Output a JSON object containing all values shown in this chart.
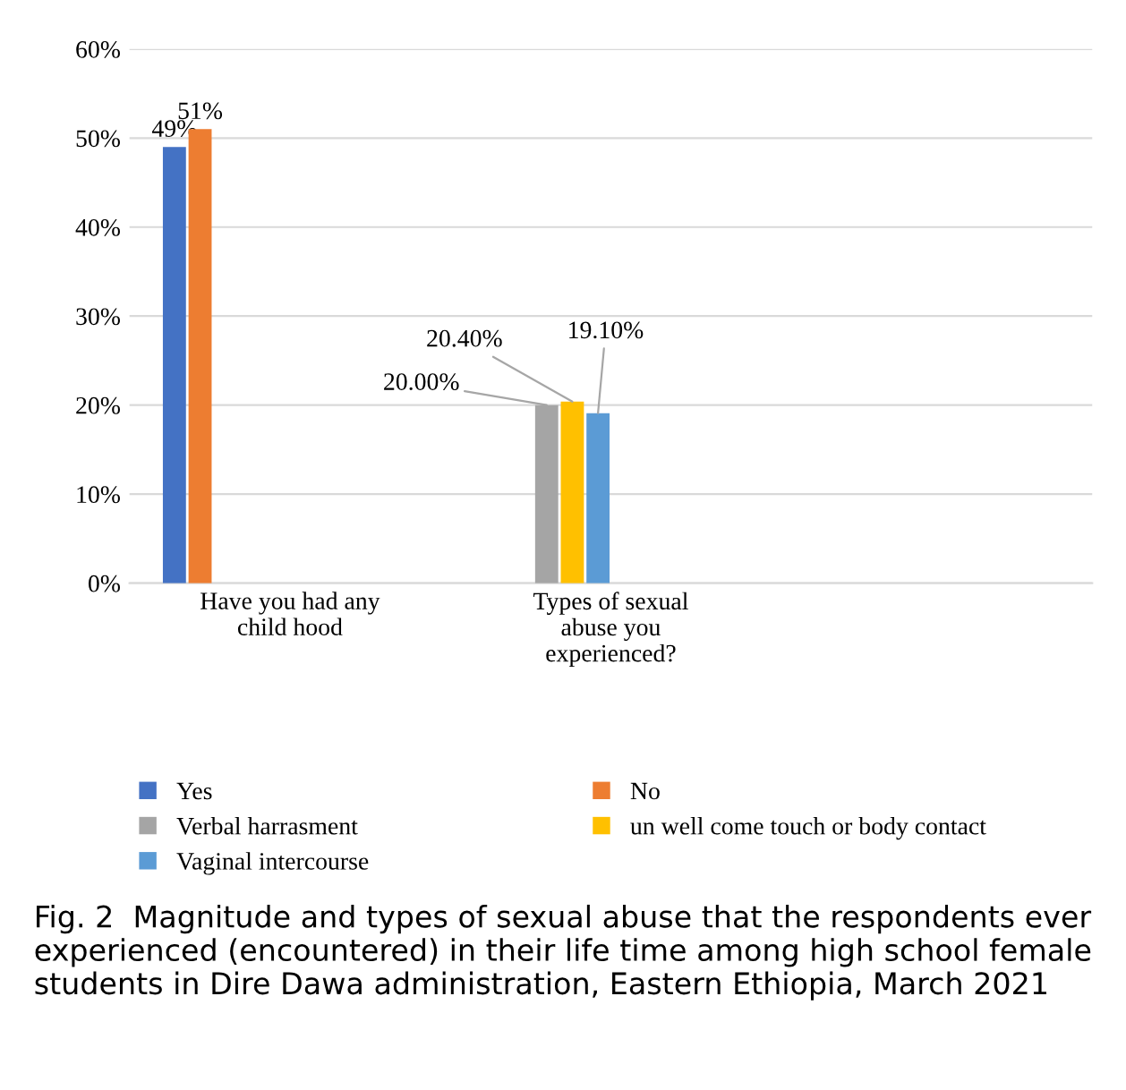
{
  "chart_data": {
    "type": "bar",
    "categories": [
      "Have you had any\nchild hood",
      "Types of sexual\nabuse you\nexperienced?",
      null
    ],
    "series": [
      {
        "name": "Yes",
        "color": "#4472c4",
        "values": [
          49,
          null,
          null
        ],
        "value_labels": [
          "49%",
          null,
          null
        ]
      },
      {
        "name": "No",
        "color": "#ed7d31",
        "values": [
          51,
          null,
          null
        ],
        "value_labels": [
          "51%",
          null,
          null
        ]
      },
      {
        "name": "Verbal harrasment",
        "color": "#a5a5a5",
        "values": [
          null,
          20.0,
          null
        ],
        "value_labels": [
          null,
          "20.00%",
          null
        ]
      },
      {
        "name": "un well come touch or body contact",
        "color": "#ffc000",
        "values": [
          null,
          20.4,
          null
        ],
        "value_labels": [
          null,
          "20.40%",
          null
        ]
      },
      {
        "name": "Vaginal intercourse",
        "color": "#5b9bd5",
        "values": [
          null,
          19.1,
          null
        ],
        "value_labels": [
          null,
          "19.10%",
          null
        ]
      }
    ],
    "ylim": [
      0,
      60
    ],
    "yticks": [
      {
        "value": 0,
        "label": "0%"
      },
      {
        "value": 10,
        "label": "10%"
      },
      {
        "value": 20,
        "label": "20%"
      },
      {
        "value": 30,
        "label": "30%"
      },
      {
        "value": 40,
        "label": "40%"
      },
      {
        "value": 50,
        "label": "50%"
      },
      {
        "value": 60,
        "label": "60%"
      }
    ],
    "grid": "y",
    "legend": "bottom",
    "annotations": [
      "Fig. 2  Magnitude and types of sexual abuse that the respondents ever experienced (encountered) in their life time among high school female students in Dire Dawa administration, Eastern Ethiopia, March 2021"
    ]
  }
}
